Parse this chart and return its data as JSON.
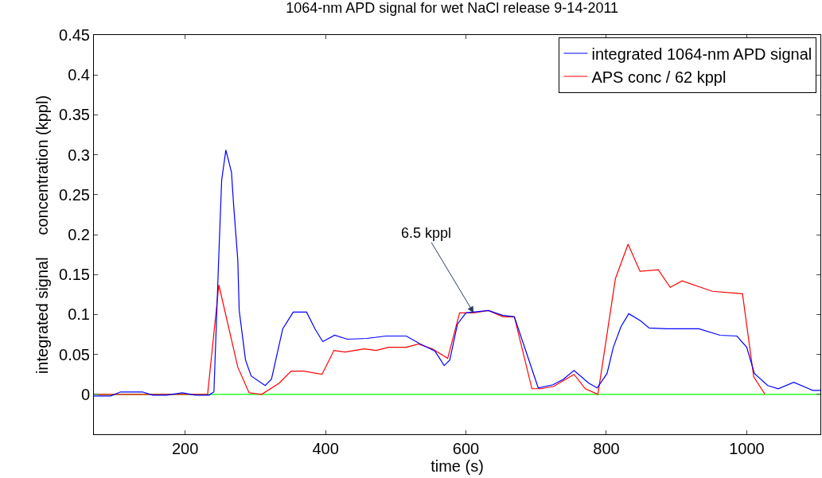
{
  "chart_data": {
    "type": "line",
    "title": "1064-nm APD signal for wet NaCl release 9-14-2011",
    "xlabel": "time (s)",
    "ylabel": "integrated signal     concentration (kppl)",
    "xlim": [
      70,
      1105
    ],
    "xticks": [
      200,
      400,
      600,
      800,
      1000
    ],
    "ylim": [
      -0.05,
      0.45
    ],
    "yticks": [
      0,
      0.05,
      0.1,
      0.15,
      0.2,
      0.25,
      0.3,
      0.35,
      0.4,
      0.45
    ],
    "legend": "top right",
    "marker": "none",
    "line_style": "solid",
    "series": [
      {
        "name": "integrated 1064-nm APD signal",
        "color": "#0000ff",
        "x": [
          70,
          94,
          108,
          139,
          154,
          173,
          196,
          215,
          234,
          241,
          248,
          252,
          258,
          266,
          269,
          275,
          277,
          286,
          294,
          314,
          323,
          339,
          354,
          373,
          385,
          396,
          413,
          431,
          459,
          486,
          515,
          535,
          556,
          569,
          577,
          588,
          600,
          632,
          652,
          669,
          682,
          703,
          724,
          739,
          754,
          775,
          787,
          801,
          810,
          821,
          832,
          849,
          861,
          886,
          932,
          962,
          986,
          1000,
          1011,
          1030,
          1045,
          1067,
          1094,
          1105
        ],
        "values": [
          -0.002,
          -0.002,
          0.003,
          0.003,
          -0.001,
          -0.001,
          0.002,
          -0.001,
          -0.001,
          0.003,
          0.175,
          0.268,
          0.306,
          0.278,
          0.238,
          0.168,
          0.105,
          0.043,
          0.023,
          0.011,
          0.019,
          0.082,
          0.103,
          0.103,
          0.082,
          0.066,
          0.074,
          0.069,
          0.07,
          0.073,
          0.073,
          0.063,
          0.054,
          0.036,
          0.043,
          0.088,
          0.102,
          0.105,
          0.099,
          0.097,
          0.063,
          0.008,
          0.012,
          0.019,
          0.03,
          0.014,
          0.008,
          0.026,
          0.059,
          0.085,
          0.101,
          0.092,
          0.083,
          0.082,
          0.082,
          0.074,
          0.073,
          0.059,
          0.026,
          0.011,
          0.007,
          0.015,
          0.005,
          0.005
        ]
      },
      {
        "name": "APS conc / 62 kppl",
        "color": "#ff0000",
        "x": [
          76,
          232,
          248,
          275,
          291,
          309,
          334,
          351,
          369,
          395,
          412,
          428,
          455,
          472,
          490,
          515,
          532,
          552,
          574,
          591,
          611,
          632,
          653,
          669,
          694,
          707,
          725,
          754,
          770,
          788,
          813,
          831,
          848,
          874,
          891,
          908,
          951,
          994,
          1010,
          1026
        ],
        "values": [
          0,
          0,
          0.137,
          0.034,
          0.002,
          0,
          0.014,
          0.029,
          0.029,
          0.025,
          0.055,
          0.053,
          0.057,
          0.055,
          0.059,
          0.059,
          0.063,
          0.057,
          0.045,
          0.102,
          0.102,
          0.105,
          0.097,
          0.097,
          0.007,
          0.007,
          0.01,
          0.025,
          0.007,
          0,
          0.145,
          0.188,
          0.154,
          0.156,
          0.134,
          0.142,
          0.129,
          0.126,
          0.022,
          0
        ]
      }
    ],
    "ref_lines": [
      {
        "axis": "y",
        "value": 0,
        "color": "#00ff00"
      }
    ],
    "annotations": [
      {
        "text": "6.5 kppl",
        "x": 611,
        "y": 0.102
      }
    ]
  }
}
